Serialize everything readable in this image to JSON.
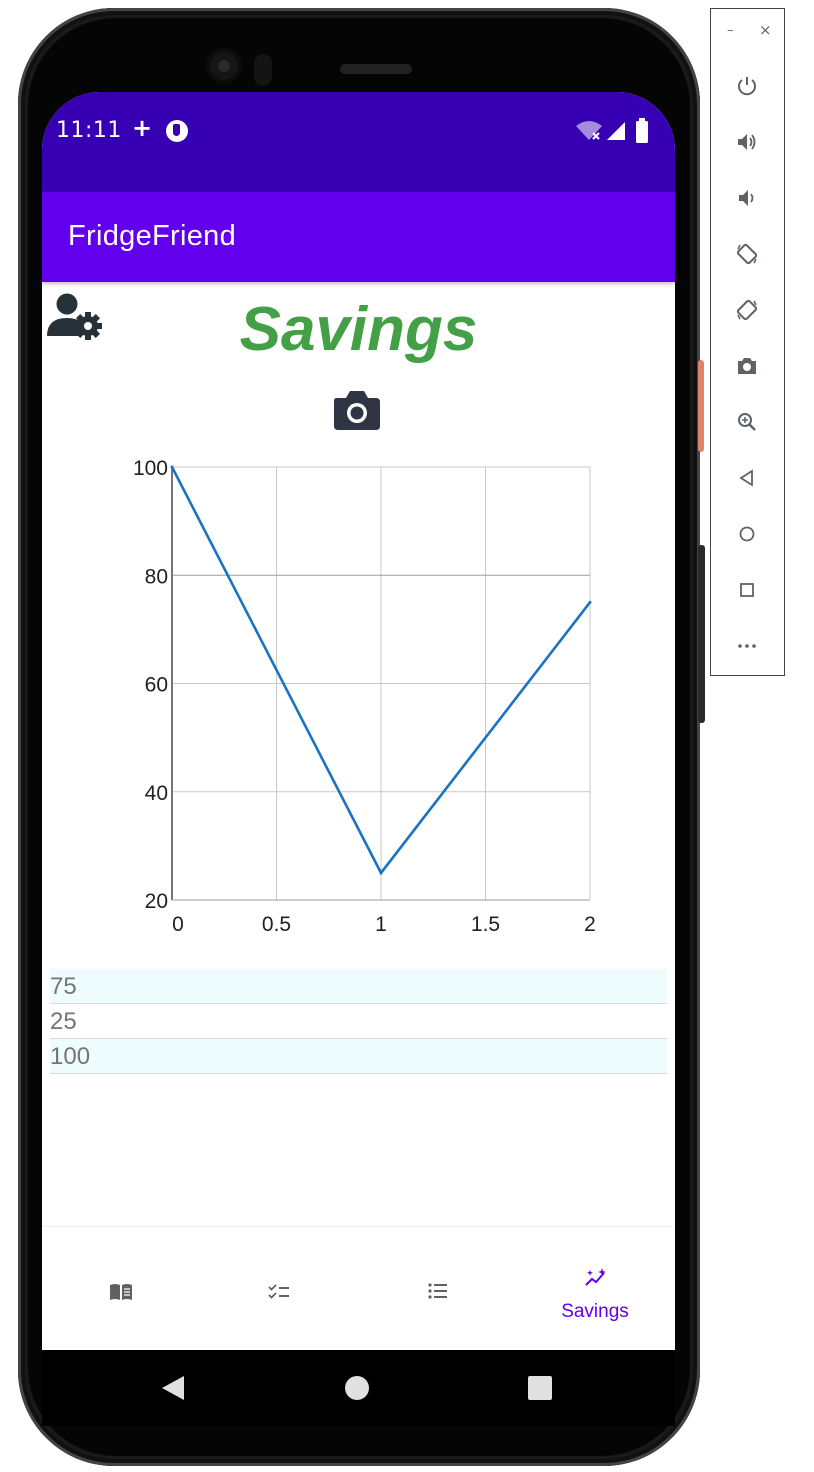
{
  "status_bar": {
    "time": "11:11",
    "plus": "+"
  },
  "app_bar": {
    "title": "FridgeFriend"
  },
  "page": {
    "title": "Savings"
  },
  "chart_data": {
    "type": "line",
    "x": [
      0,
      1,
      2
    ],
    "series": [
      {
        "values": [
          100,
          25,
          75
        ]
      }
    ],
    "xlim": [
      0,
      2
    ],
    "ylim": [
      20,
      100
    ],
    "x_ticks": [
      "0",
      "0.5",
      "1",
      "1.5",
      "2"
    ],
    "x_tick_values": [
      0,
      0.5,
      1,
      1.5,
      2
    ],
    "y_ticks": [
      "100",
      "80",
      "60",
      "40",
      "20"
    ],
    "y_tick_values": [
      100,
      80,
      60,
      40,
      20
    ],
    "grid": true,
    "line_color": "#1a73c2"
  },
  "values_list": {
    "items": [
      "75",
      "25",
      "100"
    ]
  },
  "bottom_nav": {
    "items": [
      {
        "icon": "book-icon",
        "label": ""
      },
      {
        "icon": "checklist-icon",
        "label": ""
      },
      {
        "icon": "list-icon",
        "label": ""
      },
      {
        "icon": "savings-sparkle-icon",
        "label": "Savings"
      }
    ],
    "active_color": "#6200ee",
    "inactive_color": "#616161"
  },
  "colors": {
    "status_bar": "#3700b3",
    "app_bar": "#6200ee",
    "title": "#43a047",
    "row_alt": "#effcfd"
  },
  "emulator_toolbar": {
    "minimize": "–",
    "close": "×",
    "buttons": [
      "power-icon",
      "volume-up-icon",
      "volume-down-icon",
      "rotate-left-icon",
      "rotate-right-icon",
      "screenshot-icon",
      "zoom-icon",
      "back-icon",
      "home-icon",
      "overview-icon",
      "more-icon"
    ]
  }
}
